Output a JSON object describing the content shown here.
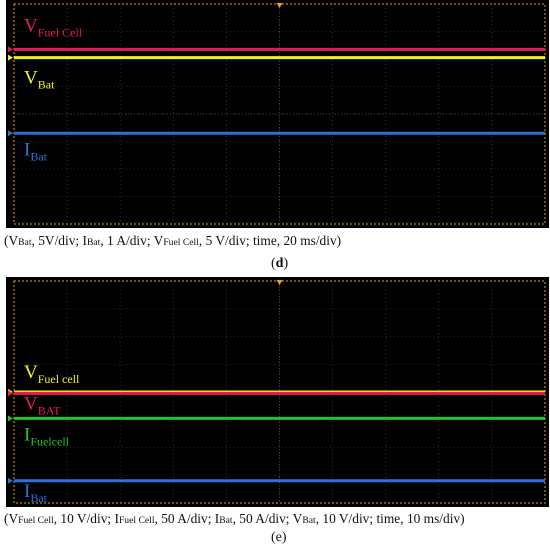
{
  "panels": [
    {
      "id": "d",
      "label": "d",
      "caption": [
        {
          "t": "("
        },
        {
          "t": "V"
        },
        {
          "t": "Bat",
          "sub": true
        },
        {
          "t": ", 5V/div; "
        },
        {
          "t": "I"
        },
        {
          "t": "Bat",
          "sub": true
        },
        {
          "t": ", 1 A/div; "
        },
        {
          "t": "V"
        },
        {
          "t": "Fuel Cell",
          "sub": true
        },
        {
          "t": ", 5 V/div; time, 20 ms/div)"
        }
      ],
      "traces": [
        {
          "name_main": "V",
          "name_sub": "Fuel Cell",
          "color": "#e8195a",
          "level_div": 6.35
        },
        {
          "name_main": "V",
          "name_sub": "Bat",
          "color": "#f2f21a",
          "level_div": 6.05
        },
        {
          "name_main": "I",
          "name_sub": "Bat",
          "color": "#2f6fd6",
          "level_div": 3.3
        }
      ]
    },
    {
      "id": "e",
      "label": "e",
      "caption": [
        {
          "t": "("
        },
        {
          "t": "V"
        },
        {
          "t": "Fuel Cell",
          "sub": true
        },
        {
          "t": ", 10 V/div; "
        },
        {
          "t": "I"
        },
        {
          "t": "Fuel Cell",
          "sub": true
        },
        {
          "t": ", 50 A/div; "
        },
        {
          "t": "I"
        },
        {
          "t": "Bat",
          "sub": true
        },
        {
          "t": ", 50 A/div; "
        },
        {
          "t": "V"
        },
        {
          "t": "Bat",
          "sub": true
        },
        {
          "t": ", 10 V/div; time, 10 ms/div)"
        }
      ],
      "traces": [
        {
          "name_main": "V",
          "name_sub": "Fuel cell",
          "color": "#f2f21a",
          "level_div": 4.0
        },
        {
          "name_main": "V",
          "name_sub": "BAT",
          "color": "#e8195a",
          "level_div": 3.95
        },
        {
          "name_main": "I",
          "name_sub": "Fuelcell",
          "color": "#22c32b",
          "level_div": 3.05
        },
        {
          "name_main": "I",
          "name_sub": "Bat",
          "color": "#2f6fd6",
          "level_div": 0.8
        }
      ]
    }
  ],
  "colors": {
    "screen": "#000000",
    "grid": "#3a3a3a",
    "frame": "#b8860b",
    "marker": "#f0a020"
  }
}
